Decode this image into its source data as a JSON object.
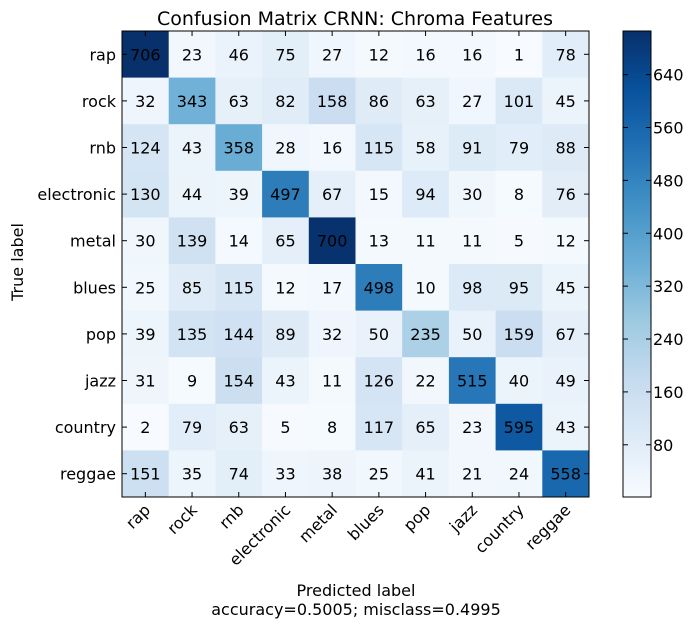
{
  "chart_data": {
    "type": "heatmap",
    "title": "Confusion Matrix CRNN: Chroma Features",
    "xlabel": "Predicted label",
    "ylabel": "True label",
    "footer": "accuracy=0.5005; misclass=0.4995",
    "row_labels": [
      "rap",
      "rock",
      "rnb",
      "electronic",
      "metal",
      "blues",
      "pop",
      "jazz",
      "country",
      "reggae"
    ],
    "col_labels": [
      "rap",
      "rock",
      "rnb",
      "electronic",
      "metal",
      "blues",
      "pop",
      "jazz",
      "country",
      "reggae"
    ],
    "values": [
      [
        706,
        23,
        46,
        75,
        27,
        12,
        16,
        16,
        1,
        78
      ],
      [
        32,
        343,
        63,
        82,
        158,
        86,
        63,
        27,
        101,
        45
      ],
      [
        124,
        43,
        358,
        28,
        16,
        115,
        58,
        91,
        79,
        88
      ],
      [
        130,
        44,
        39,
        497,
        67,
        15,
        94,
        30,
        8,
        76
      ],
      [
        30,
        139,
        14,
        65,
        700,
        13,
        11,
        11,
        5,
        12
      ],
      [
        25,
        85,
        115,
        12,
        17,
        498,
        10,
        98,
        95,
        45
      ],
      [
        39,
        135,
        144,
        89,
        32,
        50,
        235,
        50,
        159,
        67
      ],
      [
        31,
        9,
        154,
        43,
        11,
        126,
        22,
        515,
        40,
        49
      ],
      [
        2,
        79,
        63,
        5,
        8,
        117,
        65,
        23,
        595,
        43
      ],
      [
        151,
        35,
        74,
        33,
        38,
        25,
        41,
        21,
        24,
        558
      ]
    ],
    "colormap": "Blues",
    "vmin": 1,
    "vmax": 706,
    "colorbar_ticks": [
      80,
      160,
      240,
      320,
      400,
      480,
      560,
      640
    ],
    "grid": false
  }
}
